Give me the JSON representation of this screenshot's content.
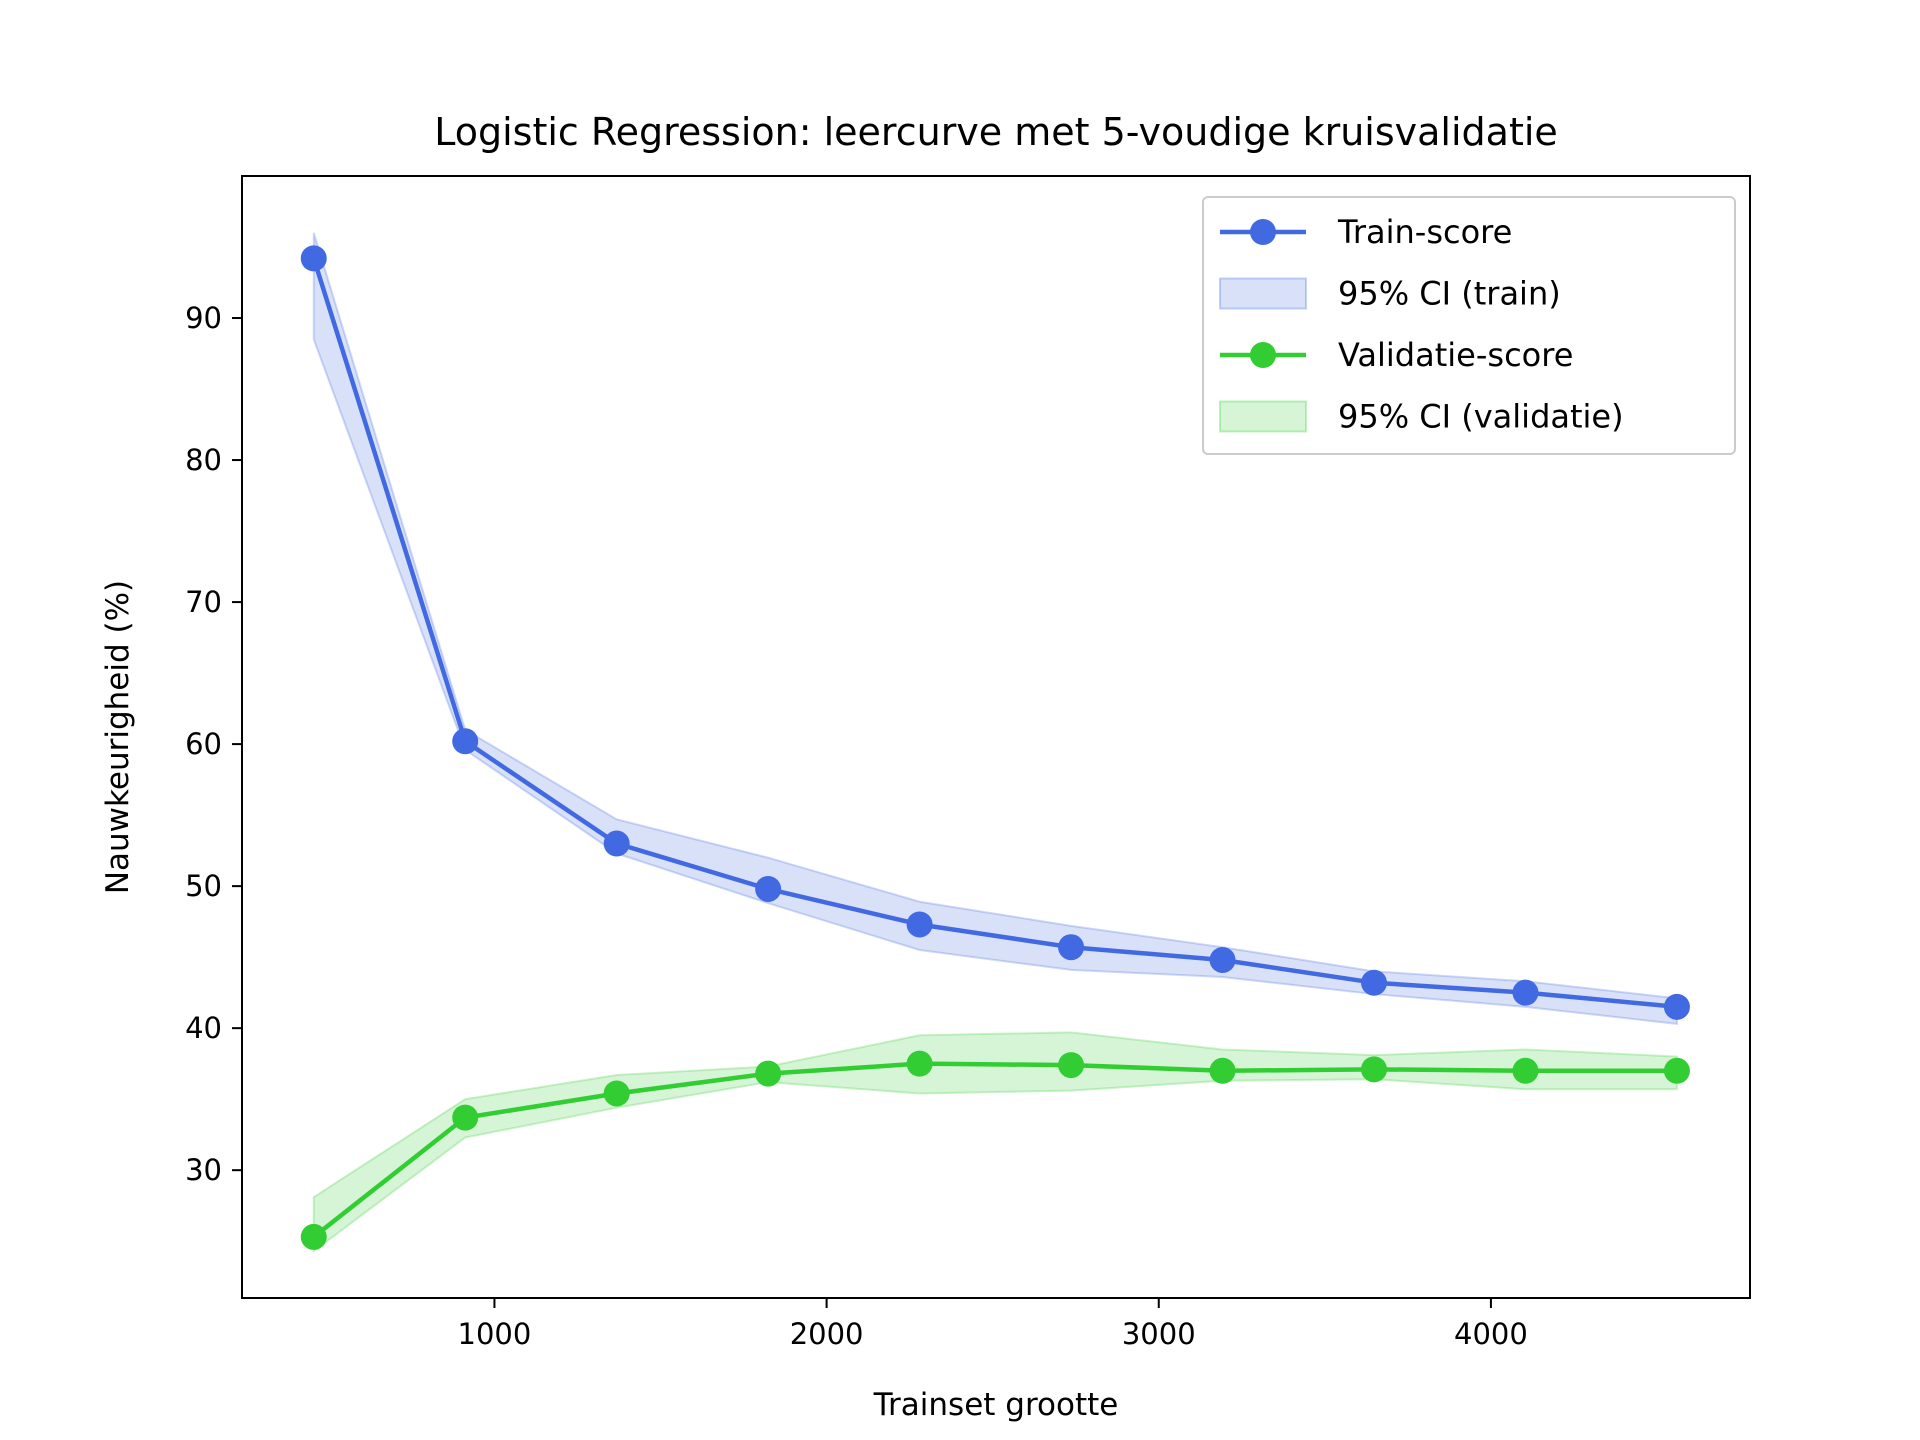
{
  "chart_data": {
    "type": "line",
    "title": "Logistic Regression: leercurve met 5-voudige kruisvalidatie",
    "xlabel": "Trainset grootte",
    "ylabel": "Nauwkeurigheid (%)",
    "xlim": [
      240,
      4780
    ],
    "ylim": [
      21,
      100
    ],
    "xticks": [
      1000,
      2000,
      3000,
      4000
    ],
    "xtick_labels": [
      "1000",
      "2000",
      "3000",
      "4000"
    ],
    "yticks": [
      30,
      40,
      50,
      60,
      70,
      80,
      90
    ],
    "ytick_labels": [
      "30",
      "40",
      "50",
      "60",
      "70",
      "80",
      "90"
    ],
    "grid": false,
    "legend_position": "top-right",
    "x": [
      456,
      912,
      1368,
      1824,
      2280,
      2736,
      3192,
      3648,
      4104,
      4560
    ],
    "series": [
      {
        "name": "Train-score",
        "color": "#4169E1",
        "values": [
          94.2,
          60.2,
          53.0,
          49.8,
          47.3,
          45.7,
          44.8,
          43.2,
          42.5,
          41.5
        ],
        "ci_lower": [
          88.5,
          59.6,
          52.3,
          48.8,
          45.5,
          44.1,
          43.6,
          42.4,
          41.5,
          40.3
        ],
        "ci_upper": [
          96.0,
          61.0,
          54.7,
          52.0,
          48.9,
          47.2,
          45.7,
          44.0,
          43.3,
          42.1
        ],
        "ci_name": "95% CI (train)"
      },
      {
        "name": "Validatie-score",
        "color": "#32CD32",
        "values": [
          25.3,
          33.7,
          35.4,
          36.8,
          37.5,
          37.4,
          37.0,
          37.1,
          37.0,
          37.0
        ],
        "ci_lower": [
          24.3,
          32.3,
          34.4,
          36.2,
          35.4,
          35.6,
          36.3,
          36.4,
          35.7,
          35.7
        ],
        "ci_upper": [
          28.1,
          35.0,
          36.7,
          37.3,
          39.5,
          39.7,
          38.5,
          38.1,
          38.5,
          38.0
        ],
        "ci_name": "95% CI (validatie)"
      }
    ]
  }
}
